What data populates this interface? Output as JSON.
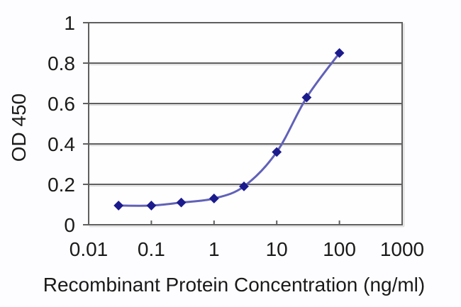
{
  "chart_data": {
    "type": "line",
    "title": "",
    "xlabel": "Recombinant Protein Concentration (ng/ml)",
    "ylabel": "OD 450",
    "x_scale": "log",
    "xlim": [
      0.01,
      1000
    ],
    "ylim": [
      0,
      1
    ],
    "x_ticks": [
      0.01,
      0.1,
      1,
      10,
      100,
      1000
    ],
    "x_tick_labels": [
      "0.01",
      "0.1",
      "1",
      "10",
      "100",
      "1000"
    ],
    "y_ticks": [
      0,
      0.2,
      0.4,
      0.6,
      0.8,
      1
    ],
    "y_tick_labels": [
      "0",
      "0.2",
      "0.4",
      "0.6",
      "0.8",
      "1"
    ],
    "grid": "horizontal",
    "legend": "none",
    "series": [
      {
        "name": "OD 450",
        "marker": "diamond",
        "smooth": true,
        "x": [
          0.03,
          0.1,
          0.3,
          1,
          3,
          10,
          30,
          100
        ],
        "y": [
          0.095,
          0.095,
          0.11,
          0.13,
          0.19,
          0.36,
          0.63,
          0.85
        ]
      }
    ]
  },
  "colors": {
    "background": "#fdfdff",
    "plot_fill": "#fefeff",
    "frame": "#5f5f5f",
    "gridline": "#5f5f5f",
    "gridline_shadow": "#d9d9d9",
    "line": "#6161b8",
    "marker": "#1b1b8d",
    "text": "#1a1a1a"
  }
}
